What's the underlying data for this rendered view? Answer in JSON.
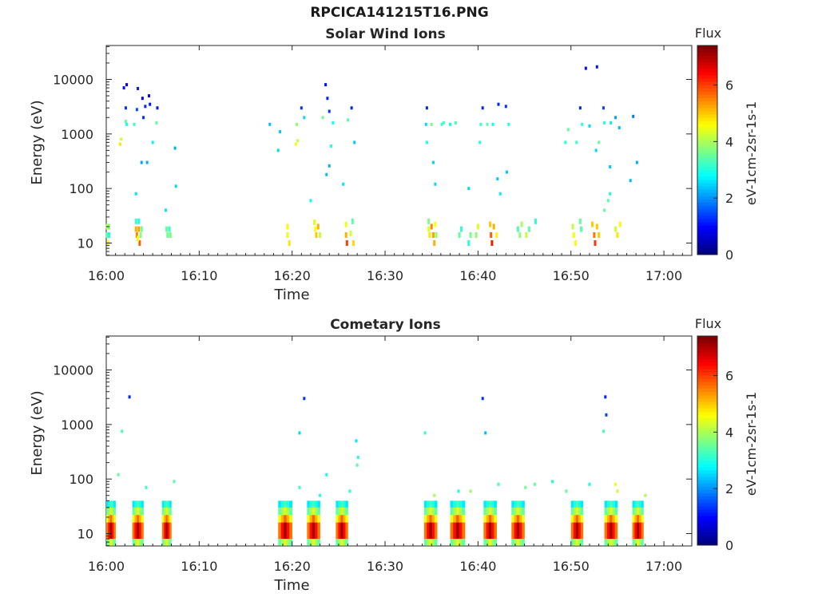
{
  "title": "RPCICA141215T16.PNG",
  "chart_data": [
    {
      "type": "heatmap",
      "title": "Solar Wind Ions",
      "xlabel": "Time",
      "ylabel": "Energy (eV)",
      "x_tick_labels": [
        "16:00",
        "16:10",
        "16:20",
        "16:30",
        "16:40",
        "16:50",
        "17:00"
      ],
      "x_ticks_min": [
        0,
        10,
        20,
        30,
        40,
        50,
        60
      ],
      "xlim_min": [
        0,
        63
      ],
      "y_scale": "log",
      "y_tick_labels": [
        "10",
        "100",
        "1000",
        "10000"
      ],
      "y_ticks": [
        10,
        100,
        1000,
        10000
      ],
      "ylim": [
        6,
        45000
      ],
      "colorbar": {
        "label_top": "Flux",
        "label": "eV-1cm-2sr-1s-1",
        "ticks": [
          0,
          2,
          4,
          6
        ],
        "range": [
          0,
          7.4
        ]
      },
      "cells": [
        [
          0.1,
          20,
          4
        ],
        [
          0.1,
          14,
          3.5
        ],
        [
          0.2,
          10,
          4.5
        ],
        [
          0.3,
          20,
          3.8
        ],
        [
          0.3,
          14,
          3
        ],
        [
          1.6,
          800,
          4.3
        ],
        [
          1.5,
          650,
          4.8
        ],
        [
          2.1,
          3000,
          1.3
        ],
        [
          2.1,
          1700,
          3.5
        ],
        [
          2.2,
          1500,
          2.9
        ],
        [
          2.2,
          8000,
          0.7
        ],
        [
          1.9,
          7000,
          1
        ],
        [
          3.2,
          25,
          3.2
        ],
        [
          3.2,
          18,
          5.2
        ],
        [
          3.3,
          14,
          5.5
        ],
        [
          3.5,
          25,
          3
        ],
        [
          3.5,
          18,
          5.3
        ],
        [
          3.6,
          10,
          5.8
        ],
        [
          3.4,
          12,
          4.6
        ],
        [
          3.8,
          18,
          3.5
        ],
        [
          3.7,
          14,
          3.8
        ],
        [
          3.0,
          1500,
          3.2
        ],
        [
          3.3,
          2800,
          1.5
        ],
        [
          3.4,
          6800,
          1.1
        ],
        [
          3.9,
          4500,
          0.9
        ],
        [
          4.0,
          2000,
          1.3
        ],
        [
          4.2,
          3200,
          1.2
        ],
        [
          4.6,
          5000,
          1.0
        ],
        [
          4.7,
          3500,
          1.1
        ],
        [
          5.4,
          1600,
          3.5
        ],
        [
          5.5,
          3000,
          1.1
        ],
        [
          5.0,
          700,
          2.7
        ],
        [
          4.4,
          300,
          2.2
        ],
        [
          3.8,
          300,
          2.1
        ],
        [
          3.2,
          80,
          2.6
        ],
        [
          6.5,
          18,
          3.5
        ],
        [
          6.6,
          14,
          3.6
        ],
        [
          6.9,
          14,
          3.6
        ],
        [
          6.8,
          18,
          3.2
        ],
        [
          7.4,
          550,
          2.2
        ],
        [
          7.5,
          110,
          2.5
        ],
        [
          6.4,
          40,
          2.6
        ],
        [
          19.5,
          20,
          4.7
        ],
        [
          19.5,
          14,
          4.5
        ],
        [
          19.7,
          10,
          4.8
        ],
        [
          20.5,
          1500,
          3.8
        ],
        [
          20.4,
          650,
          4.5
        ],
        [
          20.6,
          750,
          4.2
        ],
        [
          21.3,
          2000,
          2.5
        ],
        [
          21.0,
          3000,
          1.3
        ],
        [
          22.4,
          24,
          4.4
        ],
        [
          22.5,
          18,
          4.6
        ],
        [
          22.6,
          14,
          5
        ],
        [
          22.8,
          20,
          5.2
        ],
        [
          23.0,
          14,
          4.2
        ],
        [
          23.3,
          2000,
          3.6
        ],
        [
          23.6,
          8000,
          1.0
        ],
        [
          23.8,
          4500,
          1.2
        ],
        [
          24.0,
          2600,
          1.3
        ],
        [
          24.4,
          1600,
          2.8
        ],
        [
          24.2,
          600,
          3.0
        ],
        [
          25.8,
          22,
          4.5
        ],
        [
          25.8,
          14,
          5.2
        ],
        [
          25.9,
          10,
          6.0
        ],
        [
          26.0,
          1800,
          3.4
        ],
        [
          26.4,
          3000,
          1.2
        ],
        [
          26.7,
          700,
          2.4
        ],
        [
          26.5,
          25,
          3.4
        ],
        [
          26.6,
          10,
          4.9
        ],
        [
          26.3,
          15,
          4.3
        ],
        [
          23.7,
          180,
          2.3
        ],
        [
          24.0,
          260,
          2.2
        ],
        [
          18.7,
          1100,
          2.4
        ],
        [
          17.6,
          1500,
          2.3
        ],
        [
          18.5,
          500,
          2.5
        ],
        [
          22.0,
          60,
          2.8
        ],
        [
          25.5,
          120,
          2.6
        ],
        [
          34.7,
          25,
          3.6
        ],
        [
          34.7,
          18,
          4.4
        ],
        [
          34.8,
          14,
          4.8
        ],
        [
          35.0,
          20,
          5.5
        ],
        [
          35.2,
          14,
          5.3
        ],
        [
          35.4,
          22,
          4.6
        ],
        [
          35.3,
          10,
          5.2
        ],
        [
          35.5,
          14,
          3.8
        ],
        [
          34.4,
          1500,
          2.5
        ],
        [
          34.5,
          3000,
          1.2
        ],
        [
          34.5,
          700,
          3.0
        ],
        [
          35.0,
          1500,
          3.6
        ],
        [
          35.2,
          300,
          2.5
        ],
        [
          35.4,
          120,
          2.5
        ],
        [
          36.1,
          1500,
          3.2
        ],
        [
          36.3,
          1600,
          3.2
        ],
        [
          37.0,
          1500,
          2.9
        ],
        [
          37.6,
          1600,
          3.3
        ],
        [
          38.0,
          14,
          3.5
        ],
        [
          38.2,
          18,
          3.1
        ],
        [
          39.0,
          10,
          3.0
        ],
        [
          39.2,
          14,
          3.6
        ],
        [
          39.8,
          14,
          3.8
        ],
        [
          40.0,
          20,
          4.4
        ],
        [
          41.3,
          22,
          5.0
        ],
        [
          41.4,
          14,
          5.8
        ],
        [
          41.5,
          10,
          6.3
        ],
        [
          41.7,
          20,
          5.2
        ],
        [
          42.0,
          14,
          4.7
        ],
        [
          40.3,
          1500,
          3.2
        ],
        [
          40.5,
          3000,
          1.2
        ],
        [
          40.2,
          700,
          3.0
        ],
        [
          41.0,
          1500,
          3.4
        ],
        [
          41.6,
          1500,
          2.8
        ],
        [
          42.2,
          3500,
          1.2
        ],
        [
          43.0,
          3200,
          1.3
        ],
        [
          43.3,
          1500,
          3.0
        ],
        [
          44.3,
          18,
          3.3
        ],
        [
          44.5,
          14,
          3.8
        ],
        [
          44.7,
          22,
          4.0
        ],
        [
          45.2,
          14,
          4.2
        ],
        [
          45.5,
          18,
          3.5
        ],
        [
          42.4,
          80,
          2.7
        ],
        [
          42.1,
          150,
          2.4
        ],
        [
          46.2,
          25,
          3.1
        ],
        [
          39.0,
          100,
          2.5
        ],
        [
          43.1,
          200,
          2.4
        ],
        [
          50.2,
          20,
          4.2
        ],
        [
          50.3,
          14,
          4.5
        ],
        [
          50.5,
          10,
          4.6
        ],
        [
          51.1,
          18,
          3.4
        ],
        [
          51.0,
          25,
          3.5
        ],
        [
          52.3,
          22,
          5.0
        ],
        [
          52.5,
          14,
          5.6
        ],
        [
          52.6,
          10,
          6.1
        ],
        [
          52.8,
          20,
          5.0
        ],
        [
          53.0,
          14,
          5.0
        ],
        [
          53.6,
          40,
          3.5
        ],
        [
          54.0,
          60,
          3.4
        ],
        [
          54.2,
          80,
          3.0
        ],
        [
          54.8,
          18,
          4.3
        ],
        [
          55.0,
          14,
          4.8
        ],
        [
          55.3,
          22,
          4.6
        ],
        [
          51.2,
          1500,
          3.1
        ],
        [
          51.0,
          3000,
          1.2
        ],
        [
          50.6,
          700,
          3.2
        ],
        [
          52.0,
          1400,
          2.5
        ],
        [
          53.5,
          3000,
          1.4
        ],
        [
          53.6,
          1600,
          3.0
        ],
        [
          54.3,
          1600,
          2.6
        ],
        [
          55.2,
          1300,
          2.3
        ],
        [
          54.8,
          2000,
          2.1
        ],
        [
          53.0,
          700,
          3.5
        ],
        [
          52.7,
          500,
          2.5
        ],
        [
          54.2,
          250,
          2.4
        ],
        [
          56.7,
          2100,
          1.8
        ],
        [
          51.6,
          16000,
          1.0
        ],
        [
          52.8,
          17000,
          1.1
        ],
        [
          49.7,
          1200,
          3.5
        ],
        [
          49.4,
          700,
          3.0
        ],
        [
          57.1,
          300,
          2.2
        ],
        [
          56.4,
          140,
          2.3
        ]
      ]
    },
    {
      "type": "heatmap",
      "title": "Cometary Ions",
      "xlabel": "Time",
      "ylabel": "Energy (eV)",
      "x_tick_labels": [
        "16:00",
        "16:10",
        "16:20",
        "16:30",
        "16:40",
        "16:50",
        "17:00"
      ],
      "x_ticks_min": [
        0,
        10,
        20,
        30,
        40,
        50,
        60
      ],
      "xlim_min": [
        0,
        63
      ],
      "y_scale": "log",
      "y_tick_labels": [
        "10",
        "100",
        "1000",
        "10000"
      ],
      "y_ticks": [
        10,
        100,
        1000,
        10000
      ],
      "ylim": [
        6,
        45000
      ],
      "colorbar": {
        "label_top": "Flux",
        "label": "eV-1cm-2sr-1s-1",
        "ticks": [
          0,
          2,
          4,
          6
        ],
        "range": [
          0,
          7.4
        ]
      },
      "bands": [
        [
          0.0,
          1.0
        ],
        [
          2.8,
          4.0
        ],
        [
          6.0,
          7.0
        ],
        [
          18.5,
          20.0
        ],
        [
          21.6,
          23.0
        ],
        [
          24.7,
          26.0
        ],
        [
          34.2,
          35.6
        ],
        [
          37.0,
          38.6
        ],
        [
          40.6,
          42.0
        ],
        [
          43.6,
          45.0
        ],
        [
          50.0,
          51.3
        ],
        [
          53.6,
          55.0
        ],
        [
          56.6,
          57.8
        ]
      ],
      "cells": [
        [
          2.5,
          3200,
          1.2
        ],
        [
          1.7,
          750,
          3.3
        ],
        [
          21.3,
          3000,
          1.3
        ],
        [
          20.8,
          700,
          2.5
        ],
        [
          34.3,
          700,
          3.2
        ],
        [
          40.8,
          700,
          2.3
        ],
        [
          40.5,
          3000,
          1.3
        ],
        [
          53.5,
          750,
          3.3
        ],
        [
          53.8,
          1500,
          1.4
        ],
        [
          53.7,
          3200,
          1.2
        ],
        [
          26.9,
          500,
          2.6
        ],
        [
          27.1,
          250,
          3.1
        ],
        [
          27.0,
          180,
          3.4
        ],
        [
          35.3,
          50,
          4.0
        ],
        [
          39.2,
          60,
          3.9
        ],
        [
          42.2,
          80,
          3.3
        ],
        [
          45.1,
          70,
          3.6
        ],
        [
          46.1,
          80,
          3.5
        ],
        [
          54.8,
          80,
          4.5
        ],
        [
          55.0,
          60,
          4.2
        ],
        [
          58.0,
          50,
          4.0
        ],
        [
          1.3,
          120,
          3.5
        ],
        [
          4.3,
          70,
          3.2
        ],
        [
          7.3,
          90,
          3.4
        ],
        [
          20.8,
          70,
          3.2
        ],
        [
          23.0,
          50,
          3.0
        ],
        [
          23.7,
          120,
          2.9
        ],
        [
          26.2,
          60,
          3.1
        ],
        [
          48.0,
          90,
          3.0
        ],
        [
          49.5,
          60,
          3.5
        ],
        [
          37.9,
          60,
          3.0
        ],
        [
          52.0,
          80,
          2.9
        ]
      ]
    }
  ]
}
